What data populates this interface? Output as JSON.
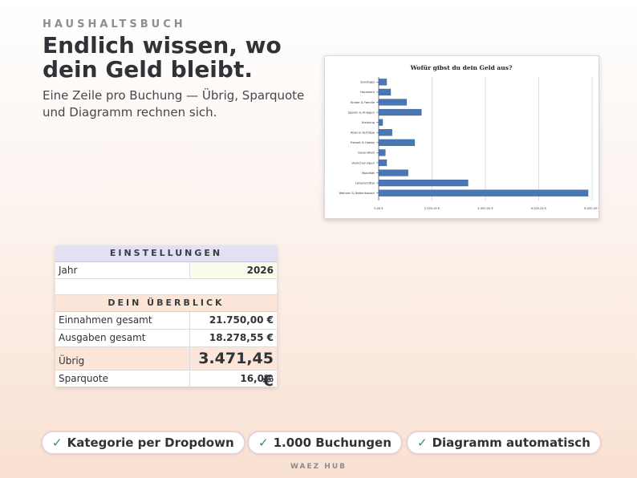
{
  "header": {
    "eyebrow": "HAUSHALTSBUCH",
    "headline": "Endlich wissen, wo dein Geld bleibt.",
    "subline": "Eine Zeile pro Buchung — Übrig, Sparquote und Diagramm rechnen sich."
  },
  "chart_data": {
    "type": "bar",
    "orientation": "horizontal",
    "title": "Wofür gibst du dein Geld aus?",
    "categories": [
      "Sonstiges",
      "Haustiere",
      "Kinder & Familie",
      "Sparen & Anlegen",
      "Kleidung",
      "Abos & Verträge",
      "Freizeit & Hobby",
      "Gesundheit",
      "Versicherungen",
      "Mobilität",
      "Lebensmittel",
      "Wohnen & Nebenkosten"
    ],
    "values": [
      300,
      450,
      1050,
      1600,
      150,
      500,
      1350,
      250,
      300,
      1100,
      3350,
      7850
    ],
    "xlim": [
      0,
      8000
    ],
    "x_ticks": [
      0,
      2000,
      4000,
      6000,
      8000
    ],
    "x_tick_labels": [
      "0,00 €",
      "2.000,00 €",
      "4.000,00 €",
      "6.000,00 €",
      "8.000,00 €"
    ],
    "grid": true,
    "bar_color": "#4a77b4"
  },
  "settings": {
    "title": "EINSTELLUNGEN",
    "year_label": "Jahr",
    "year_value": "2026"
  },
  "overview": {
    "title": "DEIN ÜBERBLICK",
    "income_label": "Einnahmen gesamt",
    "income_value": "21.750,00 €",
    "expenses_label": "Ausgaben gesamt",
    "expenses_value": "18.278,55 €",
    "remaining_label": "Übrig",
    "remaining_value": "3.471,45 €",
    "savings_label": "Sparquote",
    "savings_value": "16,0%"
  },
  "features": [
    {
      "check": "✓",
      "label": "Kategorie per Dropdown"
    },
    {
      "check": "✓",
      "label": "1.000 Buchungen"
    },
    {
      "check": "✓",
      "label": "Diagramm automatisch"
    }
  ],
  "footer": "WAEZ HUB"
}
